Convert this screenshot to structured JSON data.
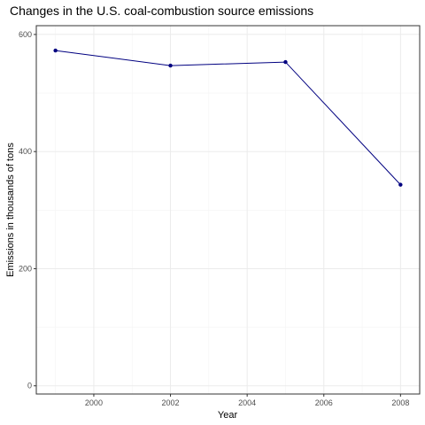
{
  "chart_data": {
    "type": "line",
    "title": "Changes in the U.S. coal-combustion source emissions",
    "xlabel": "Year",
    "ylabel": "Emissions in thousands of tons",
    "x": [
      1999,
      2002,
      2005,
      2008
    ],
    "series": [
      {
        "values": [
          572.5,
          546.8,
          552.9,
          343.4
        ]
      }
    ],
    "xlim": [
      1998.5,
      2008.5
    ],
    "ylim": [
      -14,
      615
    ],
    "xticks": [
      2000,
      2002,
      2004,
      2006,
      2008
    ],
    "xtick_labels": [
      "2000",
      "2002",
      "2004",
      "2006",
      "2008"
    ],
    "yticks": [
      0,
      200,
      400,
      600
    ],
    "ytick_labels": [
      "0",
      "200",
      "400",
      "600"
    ],
    "grid": true,
    "legend": "none",
    "colors": {
      "series": "#000080",
      "grid": "#ebebeb",
      "border": "#333333"
    }
  }
}
